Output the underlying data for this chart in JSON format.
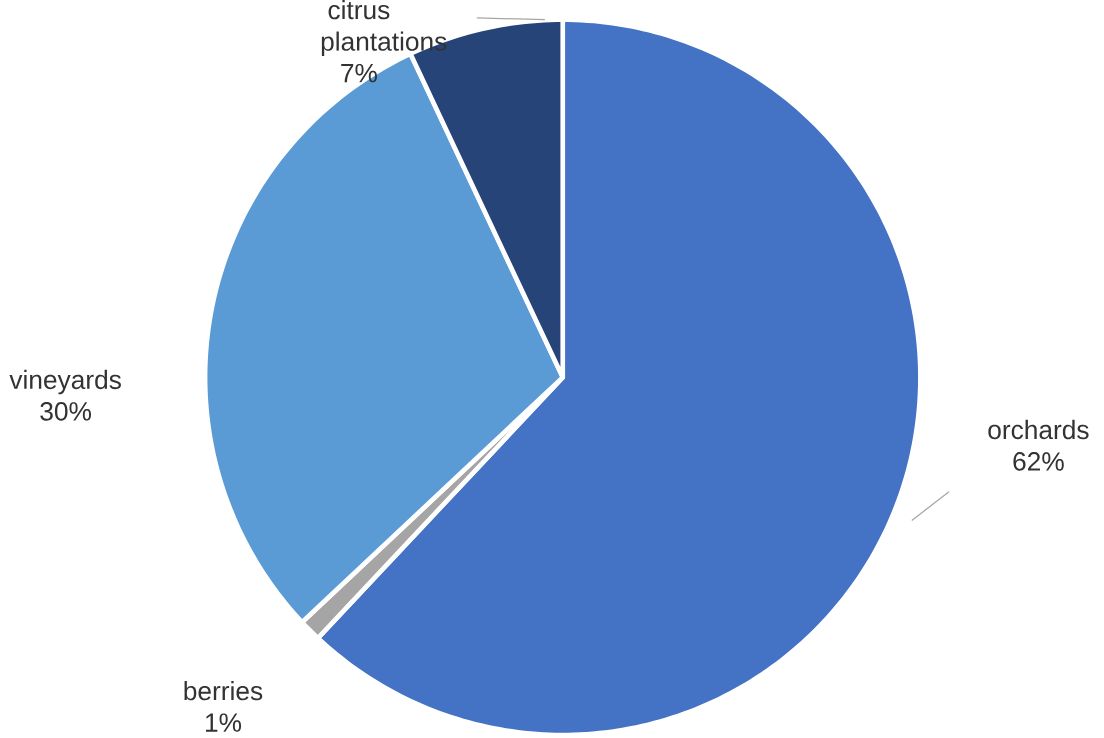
{
  "chart_data": {
    "type": "pie",
    "categories": [
      "orchards",
      "berries",
      "vineyards",
      "citrus plantations"
    ],
    "values": [
      62,
      1,
      30,
      7
    ],
    "value_labels": [
      "62%",
      "1%",
      "30%",
      "7%"
    ],
    "colors": [
      "#4472c4",
      "#a5a5a5",
      "#5b9bd5",
      "#264478"
    ]
  }
}
